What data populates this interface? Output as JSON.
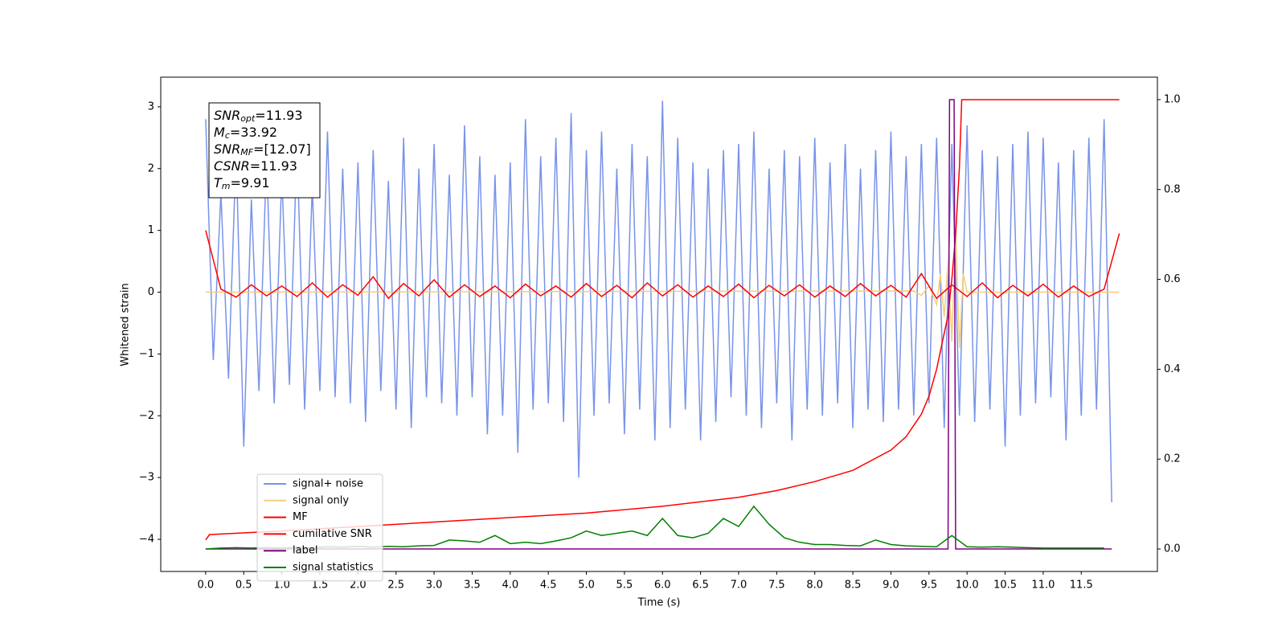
{
  "chart_data": {
    "type": "line",
    "x_label": "Time (s)",
    "y_label": "Whitened strain",
    "xlim": [
      -0.59,
      12.5
    ],
    "ylim": [
      -4.52,
      3.48
    ],
    "y2lim": [
      -0.05,
      1.05
    ],
    "xticks": [
      {
        "value": 0,
        "label": "0.0"
      },
      0.5,
      {
        "value": 1,
        "label": "1.0"
      },
      1.5,
      {
        "value": 2,
        "label": "2.0"
      },
      2.5,
      {
        "value": 3,
        "label": "3.0"
      },
      3.5,
      {
        "value": 4,
        "label": "4.0"
      },
      4.5,
      {
        "value": 5,
        "label": "5.0"
      },
      5.5,
      {
        "value": 6,
        "label": "6.0"
      },
      6.5,
      {
        "value": 7,
        "label": "7.0"
      },
      7.5,
      {
        "value": 8,
        "label": "8.0"
      },
      8.5,
      {
        "value": 9,
        "label": "9.0"
      },
      9.5,
      {
        "value": 10,
        "label": "10.0"
      },
      10.5,
      {
        "value": 11,
        "label": "11.0"
      },
      11.5
    ],
    "yticks": [
      {
        "value": -4,
        "label": "−4"
      },
      {
        "value": -3,
        "label": "−3"
      },
      {
        "value": -2,
        "label": "−2"
      },
      {
        "value": -1,
        "label": "−1"
      },
      0,
      1,
      2,
      3
    ],
    "y2ticks": [
      {
        "value": 0,
        "label": "0.0"
      },
      0.2,
      0.4,
      0.6,
      0.8,
      {
        "value": 1,
        "label": "1.0"
      }
    ],
    "legend": "lower left",
    "annotation": [
      {
        "name": "SNR",
        "sub": "opt",
        "text": "=11.93"
      },
      {
        "name": "M",
        "sub": "c",
        "text": "=33.92"
      },
      {
        "name": "SNR",
        "sub": "MF",
        "text": "=[12.07]"
      },
      {
        "name": "CSNR",
        "text": "=11.93"
      },
      {
        "name": "T",
        "sub": "m",
        "text": "=9.91"
      }
    ],
    "series": [
      {
        "name": "signal+ noise",
        "color": "#7893e8",
        "x": [
          0,
          0.1,
          0.2,
          0.3,
          0.4,
          0.5,
          0.6,
          0.7,
          0.8,
          0.9,
          1,
          1.1,
          1.2,
          1.3,
          1.4,
          1.5,
          1.6,
          1.7,
          1.8,
          1.9,
          2,
          2.1,
          2.2,
          2.3,
          2.4,
          2.5,
          2.6,
          2.7,
          2.8,
          2.9,
          3,
          3.1,
          3.2,
          3.3,
          3.4,
          3.5,
          3.6,
          3.7,
          3.8,
          3.9,
          4,
          4.1,
          4.2,
          4.3,
          4.4,
          4.5,
          4.6,
          4.7,
          4.8,
          4.9,
          5,
          5.1,
          5.2,
          5.3,
          5.4,
          5.5,
          5.6,
          5.7,
          5.8,
          5.9,
          6,
          6.1,
          6.2,
          6.3,
          6.4,
          6.5,
          6.6,
          6.7,
          6.8,
          6.9,
          7,
          7.1,
          7.2,
          7.3,
          7.4,
          7.5,
          7.6,
          7.7,
          7.8,
          7.9,
          8,
          8.1,
          8.2,
          8.3,
          8.4,
          8.5,
          8.6,
          8.7,
          8.8,
          8.9,
          9,
          9.1,
          9.2,
          9.3,
          9.4,
          9.5,
          9.6,
          9.7,
          9.8,
          9.9,
          10,
          10.1,
          10.2,
          10.3,
          10.4,
          10.5,
          10.6,
          10.7,
          10.8,
          10.9,
          11,
          11.1,
          11.2,
          11.3,
          11.4,
          11.5,
          11.6,
          11.7,
          11.8,
          11.9
        ],
        "values": [
          2.8,
          -1.1,
          1.6,
          -1.4,
          2.3,
          -2.5,
          1.5,
          -1.6,
          2.2,
          -1.8,
          1.9,
          -1.5,
          2.4,
          -1.9,
          1.7,
          -1.6,
          2.6,
          -1.7,
          2.0,
          -1.8,
          2.1,
          -2.1,
          2.3,
          -1.6,
          1.8,
          -1.9,
          2.5,
          -2.2,
          2.0,
          -1.7,
          2.4,
          -1.8,
          1.9,
          -2.0,
          2.7,
          -1.7,
          2.2,
          -2.3,
          1.9,
          -2.0,
          2.1,
          -2.6,
          2.8,
          -1.9,
          2.2,
          -1.8,
          2.5,
          -2.1,
          2.9,
          -3.0,
          2.3,
          -2.0,
          2.6,
          -1.8,
          2.0,
          -2.3,
          2.4,
          -1.9,
          2.2,
          -2.4,
          3.1,
          -2.2,
          2.5,
          -1.9,
          2.1,
          -2.4,
          2.0,
          -2.1,
          2.3,
          -1.7,
          2.4,
          -2.0,
          2.6,
          -2.2,
          2.0,
          -1.8,
          2.3,
          -2.4,
          2.2,
          -1.9,
          2.5,
          -2.0,
          2.1,
          -1.8,
          2.4,
          -2.2,
          2.0,
          -1.9,
          2.3,
          -2.1,
          2.6,
          -1.9,
          2.2,
          -2.0,
          2.4,
          -1.8,
          2.5,
          -2.2,
          2.4,
          -2.0,
          2.7,
          -2.1,
          2.3,
          -1.9,
          2.2,
          -2.5,
          2.4,
          -2.0,
          2.6,
          -1.8,
          2.5,
          -1.7,
          2.1,
          -2.4,
          2.3,
          -2.0,
          2.5,
          -1.9,
          2.8,
          -3.4
        ]
      },
      {
        "name": "signal only",
        "color": "#f8cd7a",
        "x": [
          0,
          9.3,
          9.4,
          9.5,
          9.6,
          9.65,
          9.7,
          9.75,
          9.8,
          9.85,
          9.9,
          9.95,
          10,
          12
        ],
        "values": [
          0,
          0.02,
          -0.05,
          0.1,
          -0.2,
          0.3,
          -0.4,
          0.5,
          -0.8,
          1.0,
          -0.9,
          0.3,
          0,
          0
        ]
      },
      {
        "name": "MF",
        "color": "#ff0000",
        "x": [
          0,
          0.2,
          0.4,
          0.6,
          0.8,
          1,
          1.2,
          1.4,
          1.6,
          1.8,
          2,
          2.2,
          2.4,
          2.6,
          2.8,
          3,
          3.2,
          3.4,
          3.6,
          3.8,
          4,
          4.2,
          4.4,
          4.6,
          4.8,
          5,
          5.2,
          5.4,
          5.6,
          5.8,
          6,
          6.2,
          6.4,
          6.6,
          6.8,
          7,
          7.2,
          7.4,
          7.6,
          7.8,
          8,
          8.2,
          8.4,
          8.6,
          8.8,
          9,
          9.2,
          9.4,
          9.6,
          9.8,
          10,
          10.2,
          10.4,
          10.6,
          10.8,
          11,
          11.2,
          11.4,
          11.6,
          11.8,
          12
        ],
        "values": [
          1.0,
          0.05,
          -0.08,
          0.12,
          -0.06,
          0.1,
          -0.07,
          0.15,
          -0.08,
          0.12,
          -0.05,
          0.25,
          -0.1,
          0.14,
          -0.06,
          0.2,
          -0.08,
          0.12,
          -0.07,
          0.1,
          -0.09,
          0.13,
          -0.06,
          0.1,
          -0.08,
          0.14,
          -0.07,
          0.11,
          -0.09,
          0.15,
          -0.06,
          0.12,
          -0.08,
          0.1,
          -0.07,
          0.13,
          -0.09,
          0.11,
          -0.06,
          0.12,
          -0.08,
          0.1,
          -0.07,
          0.14,
          -0.06,
          0.11,
          -0.08,
          0.3,
          -0.1,
          0.12,
          -0.07,
          0.15,
          -0.09,
          0.11,
          -0.06,
          0.13,
          -0.08,
          0.1,
          -0.07,
          0.05,
          0.95
        ]
      },
      {
        "name": "cumilative SNR",
        "color": "#ff0000",
        "axis": "y2",
        "x": [
          0,
          0.05,
          1,
          2,
          3,
          4,
          5,
          6,
          7,
          7.5,
          8,
          8.5,
          9,
          9.2,
          9.4,
          9.5,
          9.6,
          9.7,
          9.75,
          9.8,
          9.85,
          9.9,
          9.93,
          10,
          11,
          12
        ],
        "values": [
          0.02,
          0.032,
          0.04,
          0.05,
          0.06,
          0.07,
          0.08,
          0.095,
          0.115,
          0.13,
          0.15,
          0.175,
          0.22,
          0.25,
          0.3,
          0.34,
          0.4,
          0.48,
          0.52,
          0.6,
          0.7,
          0.85,
          1.0,
          1.0,
          1.0,
          1.0
        ]
      },
      {
        "name": "label",
        "color": "#800080",
        "axis": "y2",
        "x": [
          0,
          9.75,
          9.77,
          9.83,
          9.85,
          11.9
        ],
        "values": [
          0,
          0,
          1,
          1,
          0,
          0
        ]
      },
      {
        "name": "signal statistics",
        "color": "#008000",
        "axis": "y2",
        "x": [
          0,
          0.2,
          0.4,
          0.6,
          0.8,
          1,
          1.2,
          1.4,
          1.6,
          1.8,
          2,
          2.2,
          2.4,
          2.6,
          2.8,
          3,
          3.2,
          3.4,
          3.6,
          3.8,
          4,
          4.2,
          4.4,
          4.6,
          4.8,
          5,
          5.2,
          5.4,
          5.6,
          5.8,
          6,
          6.2,
          6.4,
          6.6,
          6.8,
          7,
          7.2,
          7.4,
          7.6,
          7.8,
          8,
          8.2,
          8.4,
          8.6,
          8.8,
          9,
          9.2,
          9.4,
          9.6,
          9.8,
          10,
          10.2,
          10.4,
          10.6,
          10.8,
          11,
          11.2,
          11.4,
          11.6,
          11.8
        ],
        "values": [
          0.0,
          0.002,
          0.003,
          0.002,
          0.003,
          0.002,
          0.004,
          0.003,
          0.005,
          0.004,
          0.006,
          0.004,
          0.006,
          0.005,
          0.007,
          0.008,
          0.02,
          0.018,
          0.015,
          0.03,
          0.012,
          0.015,
          0.012,
          0.018,
          0.025,
          0.04,
          0.03,
          0.035,
          0.04,
          0.03,
          0.068,
          0.03,
          0.025,
          0.035,
          0.068,
          0.05,
          0.095,
          0.055,
          0.025,
          0.015,
          0.01,
          0.01,
          0.008,
          0.007,
          0.02,
          0.01,
          0.007,
          0.006,
          0.005,
          0.03,
          0.005,
          0.004,
          0.005,
          0.004,
          0.003,
          0.002,
          0.002,
          0.002,
          0.002,
          0.002
        ]
      }
    ]
  }
}
